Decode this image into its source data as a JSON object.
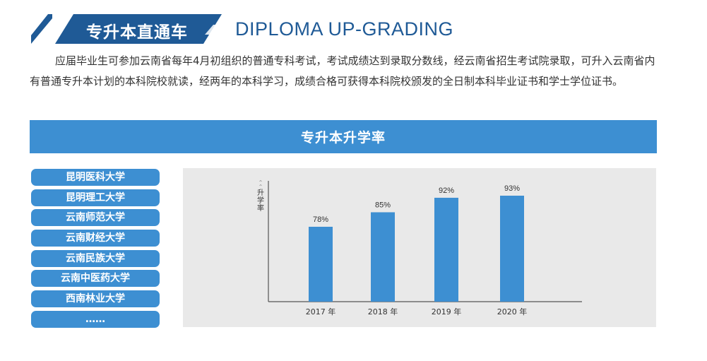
{
  "header": {
    "title_cn": "专升本直通车",
    "title_en": "DIPLOMA UP-GRADING",
    "colors": {
      "dark_blue": "#1f5a96",
      "blue": "#3d8fd2"
    }
  },
  "intro": "应届毕业生可参加云南省每年4月初组织的普通专科考试，考试成绩达到录取分数线，经云南省招生考试院录取，可升入云南省内有普通专升本计划的本科院校就读，经两年的本科学习，成绩合格可获得本科院校颁发的全日制本科毕业证书和学士学位证书。",
  "section_title": "专升本升学率",
  "universities": [
    "昆明医科大学",
    "昆明理工大学",
    "云南师范大学",
    "云南财经大学",
    "云南民族大学",
    "云南中医药大学",
    "西南林业大学",
    "……"
  ],
  "chart_data": {
    "type": "bar",
    "categories": [
      "2017 年",
      "2018 年",
      "2019 年",
      "2020 年"
    ],
    "values": [
      78,
      85,
      92,
      93
    ],
    "data_labels": [
      "78%",
      "85%",
      "92%",
      "93%"
    ],
    "ylabel": "升学率",
    "ylim": [
      0,
      100
    ],
    "grid": false,
    "bar_color": "#3d8fd2"
  }
}
